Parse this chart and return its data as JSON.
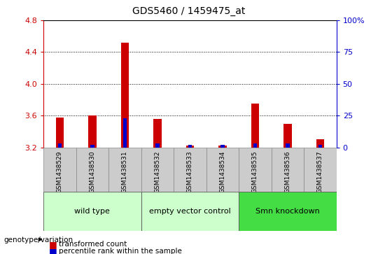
{
  "title": "GDS5460 / 1459475_at",
  "samples": [
    "GSM1438529",
    "GSM1438530",
    "GSM1438531",
    "GSM1438532",
    "GSM1438533",
    "GSM1438534",
    "GSM1438535",
    "GSM1438536",
    "GSM1438537"
  ],
  "red_values": [
    3.575,
    3.605,
    4.52,
    3.56,
    3.225,
    3.225,
    3.75,
    3.5,
    3.3
  ],
  "blue_values": [
    3.245,
    3.235,
    3.565,
    3.245,
    3.235,
    3.235,
    3.245,
    3.245,
    3.235
  ],
  "baseline": 3.2,
  "ylim_left": [
    3.2,
    4.8
  ],
  "yticks_left": [
    3.2,
    3.6,
    4.0,
    4.4,
    4.8
  ],
  "yticks_right": [
    0,
    25,
    50,
    75,
    100
  ],
  "groups": [
    {
      "label": "wild type",
      "indices": [
        0,
        1,
        2
      ],
      "facecolor": "#ccffcc"
    },
    {
      "label": "empty vector control",
      "indices": [
        3,
        4,
        5
      ],
      "facecolor": "#ccffcc"
    },
    {
      "label": "Smn knockdown",
      "indices": [
        6,
        7,
        8
      ],
      "facecolor": "#44dd44"
    }
  ],
  "group_label_prefix": "genotype/variation",
  "legend_red": "transformed count",
  "legend_blue": "percentile rank within the sample",
  "bar_color_red": "#CC0000",
  "bar_color_blue": "#0000CC",
  "left_axis_color": "#CC0000",
  "right_axis_color": "#0000CC",
  "bar_width": 0.25,
  "blue_bar_width": 0.12,
  "ticklabel_bg": "#cccccc"
}
